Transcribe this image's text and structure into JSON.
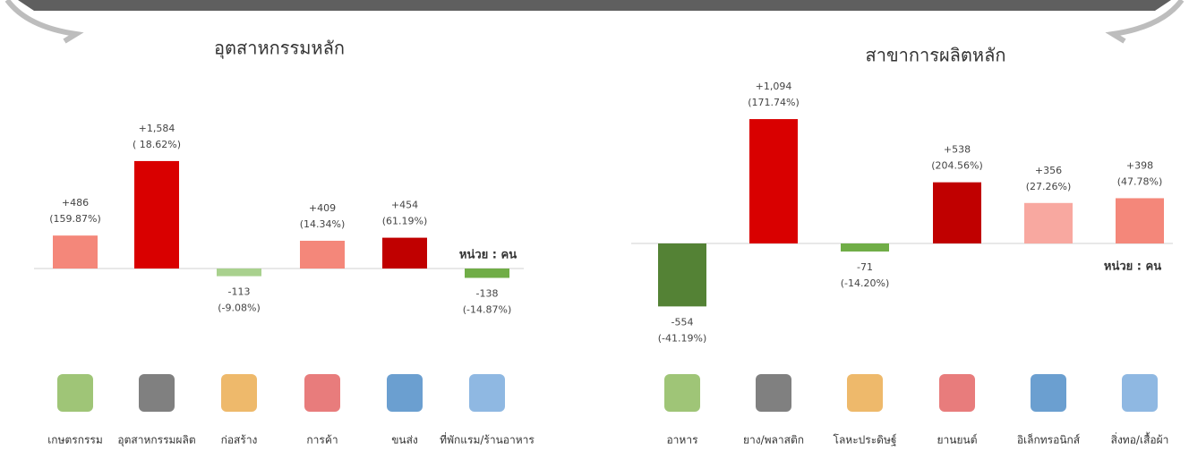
{
  "chart_data": [
    {
      "type": "bar",
      "title": "อุตสาหกรรมหลัก",
      "unit_label": "หน่วย : คน",
      "categories": [
        "เกษตรกรรม",
        "อุตสาหกรรมผลิต",
        "ก่อสร้าง",
        "การค้า",
        "ขนส่ง",
        "ที่พักแรม/ร้านอาหาร"
      ],
      "values": [
        486,
        1584,
        -113,
        409,
        454,
        -138
      ],
      "value_labels": [
        "+486",
        "+1,584",
        "-113",
        "+409",
        "+454",
        "-138"
      ],
      "change_labels": [
        "(159.87%)",
        "( 18.62%)",
        "(-9.08%)",
        "(14.34%)",
        "(61.19%)",
        "(-14.87%)"
      ],
      "colors": [
        "#f4877a",
        "#d90000",
        "#a9d18e",
        "#f4877a",
        "#c00000",
        "#70ad47"
      ]
    },
    {
      "type": "bar",
      "title": "สาขาการผลิตหลัก",
      "unit_label": "หน่วย : คน",
      "categories": [
        "อาหาร",
        "ยาง/พลาสติก",
        "โลหะประดิษฐ์",
        "ยานยนต์",
        "อิเล็กทรอนิกส์",
        "สิ่งทอ/เสื้อผ้า"
      ],
      "values": [
        -554,
        1094,
        -71,
        538,
        356,
        398
      ],
      "value_labels": [
        "-554",
        "+1,094",
        "-71",
        "+538",
        "+356",
        "+398"
      ],
      "change_labels": [
        "(-41.19%)",
        "(171.74%)",
        "(-14.20%)",
        "(204.56%)",
        "(27.26%)",
        "(47.78%)"
      ],
      "colors": [
        "#548235",
        "#d90000",
        "#70ad47",
        "#c00000",
        "#f8a8a0",
        "#f4877a"
      ]
    }
  ]
}
